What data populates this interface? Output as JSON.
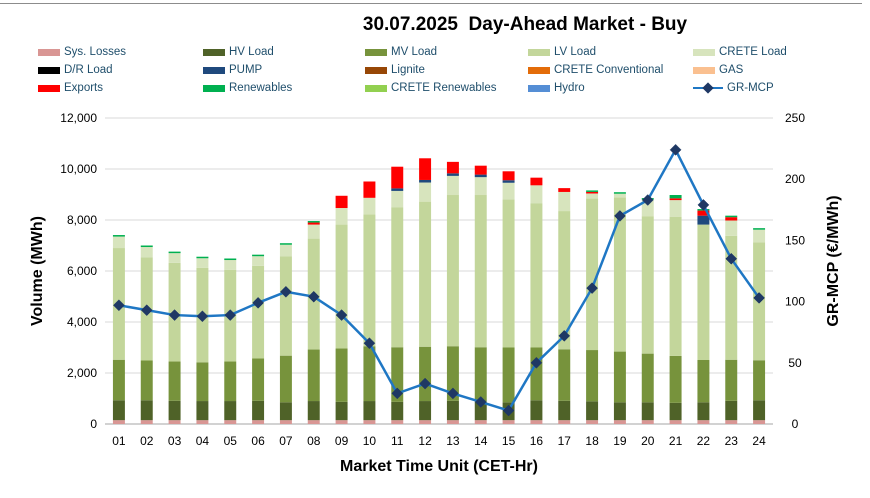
{
  "chart_data": {
    "type": "bar",
    "title": "30.07.2025  Day-Ahead Market - Buy",
    "xlabel": "Market Time Unit (CET-Hr)",
    "ylabel": "Volume (MWh)",
    "y2label": "GR-MCP (€/MWh)",
    "ylim": [
      0,
      12000
    ],
    "y2lim": [
      0,
      250
    ],
    "yticks": [
      "0",
      "2,000",
      "4,000",
      "6,000",
      "8,000",
      "10,000",
      "12,000"
    ],
    "y2ticks": [
      "0",
      "50",
      "100",
      "150",
      "200",
      "250"
    ],
    "legend_position": "top",
    "categories": [
      "01",
      "02",
      "03",
      "04",
      "05",
      "06",
      "07",
      "08",
      "09",
      "10",
      "11",
      "12",
      "13",
      "14",
      "15",
      "16",
      "17",
      "18",
      "19",
      "20",
      "21",
      "22",
      "23",
      "24"
    ],
    "series": [
      {
        "name": "Sys. Losses",
        "color": "#d99694",
        "kind": "bar",
        "values": [
          150,
          150,
          150,
          150,
          150,
          150,
          150,
          150,
          150,
          150,
          150,
          150,
          150,
          150,
          150,
          150,
          150,
          150,
          150,
          150,
          150,
          150,
          150,
          150
        ]
      },
      {
        "name": "HV Load",
        "color": "#4f6228",
        "kind": "bar",
        "values": [
          780,
          780,
          760,
          750,
          750,
          760,
          700,
          750,
          720,
          750,
          720,
          750,
          760,
          720,
          700,
          780,
          760,
          740,
          700,
          700,
          680,
          700,
          760,
          780
        ]
      },
      {
        "name": "MV Load",
        "color": "#77933c",
        "kind": "bar",
        "values": [
          1590,
          1560,
          1540,
          1520,
          1550,
          1660,
          1830,
          2020,
          2090,
          2150,
          2140,
          2130,
          2140,
          2140,
          2150,
          2070,
          2020,
          2010,
          1990,
          1910,
          1840,
          1660,
          1610,
          1570
        ]
      },
      {
        "name": "LV Load",
        "color": "#c3d69b",
        "kind": "bar",
        "values": [
          4380,
          4050,
          3870,
          3700,
          3600,
          3630,
          3900,
          4350,
          4860,
          5170,
          5480,
          5690,
          5930,
          5970,
          5810,
          5660,
          5420,
          5940,
          6040,
          5390,
          5460,
          5310,
          4860,
          4620
        ]
      },
      {
        "name": "CRETE Load",
        "color": "#d7e4bd",
        "kind": "bar",
        "values": [
          450,
          400,
          380,
          380,
          380,
          380,
          450,
          550,
          650,
          650,
          650,
          750,
          750,
          700,
          650,
          700,
          750,
          200,
          150,
          650,
          650,
          0,
          600,
          500
        ]
      },
      {
        "name": "D/R Load",
        "color": "#000000",
        "kind": "bar",
        "values": [
          0,
          0,
          0,
          0,
          0,
          0,
          0,
          0,
          0,
          0,
          0,
          0,
          0,
          0,
          0,
          0,
          0,
          0,
          0,
          0,
          0,
          0,
          0,
          0
        ]
      },
      {
        "name": "PUMP",
        "color": "#1f497d",
        "kind": "bar",
        "values": [
          0,
          0,
          0,
          0,
          0,
          0,
          0,
          0,
          0,
          0,
          100,
          100,
          100,
          100,
          100,
          0,
          0,
          0,
          0,
          0,
          0,
          350,
          0,
          0
        ]
      },
      {
        "name": "Lignite",
        "color": "#974706",
        "kind": "bar",
        "values": [
          0,
          0,
          0,
          0,
          0,
          0,
          0,
          0,
          0,
          0,
          0,
          0,
          0,
          0,
          0,
          0,
          0,
          0,
          0,
          0,
          0,
          0,
          0,
          0
        ]
      },
      {
        "name": "CRETE Conventional",
        "color": "#e36c09",
        "kind": "bar",
        "values": [
          0,
          0,
          0,
          0,
          0,
          0,
          0,
          0,
          0,
          0,
          0,
          0,
          0,
          0,
          0,
          0,
          0,
          0,
          0,
          0,
          0,
          0,
          0,
          0
        ]
      },
      {
        "name": "GAS",
        "color": "#fac090",
        "kind": "bar",
        "values": [
          0,
          0,
          0,
          0,
          0,
          0,
          0,
          0,
          0,
          0,
          0,
          0,
          0,
          0,
          0,
          0,
          0,
          0,
          0,
          0,
          0,
          0,
          0,
          0
        ]
      },
      {
        "name": "Exports",
        "color": "#ff0000",
        "kind": "bar",
        "values": [
          0,
          0,
          0,
          0,
          0,
          0,
          0,
          80,
          480,
          640,
          850,
          850,
          450,
          350,
          350,
          300,
          150,
          60,
          0,
          0,
          70,
          200,
          130,
          0
        ]
      },
      {
        "name": "Renewables",
        "color": "#00b050",
        "kind": "bar",
        "values": [
          60,
          60,
          60,
          60,
          60,
          60,
          60,
          60,
          0,
          0,
          0,
          0,
          0,
          0,
          0,
          0,
          0,
          60,
          60,
          60,
          130,
          60,
          60,
          60
        ]
      },
      {
        "name": "CRETE Renewables",
        "color": "#92d050",
        "kind": "bar",
        "values": [
          0,
          0,
          0,
          0,
          0,
          0,
          0,
          0,
          0,
          0,
          0,
          0,
          0,
          0,
          0,
          0,
          0,
          0,
          0,
          0,
          0,
          0,
          0,
          0
        ]
      },
      {
        "name": "Hydro",
        "color": "#558ed5",
        "kind": "bar",
        "values": [
          0,
          0,
          0,
          0,
          0,
          0,
          0,
          0,
          0,
          0,
          0,
          0,
          0,
          0,
          0,
          0,
          0,
          0,
          0,
          0,
          0,
          0,
          0,
          0
        ]
      },
      {
        "name": "GR-MCP",
        "color": "#1f77c4",
        "marker_color": "#1f3864",
        "kind": "line",
        "axis": "right",
        "values": [
          97,
          93,
          89,
          88,
          89,
          99,
          108,
          104,
          89,
          66,
          25,
          33,
          25,
          18,
          11,
          50,
          72,
          111,
          170,
          183,
          224,
          179,
          135,
          103
        ]
      }
    ]
  }
}
